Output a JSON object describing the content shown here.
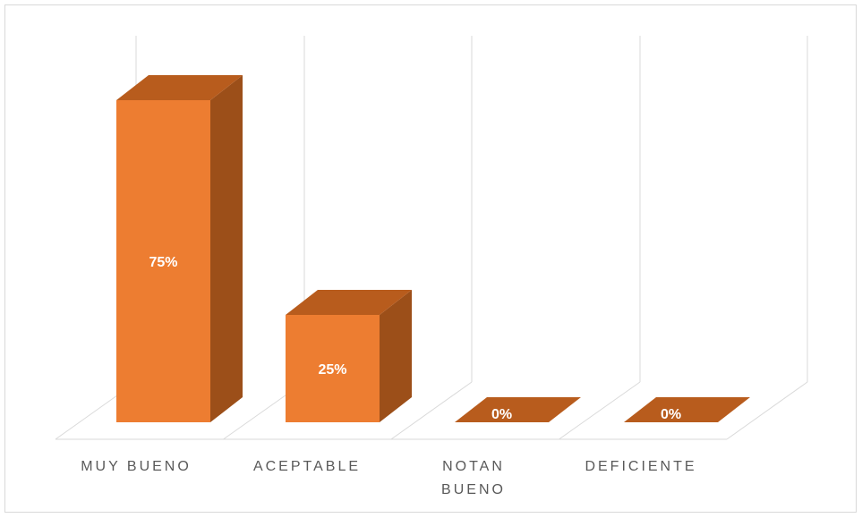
{
  "chart_data": {
    "type": "bar",
    "style": "3d-column",
    "categories": [
      [
        "MUY BUENO"
      ],
      [
        "ACEPTABLE"
      ],
      [
        "NOTAN",
        "BUENO"
      ],
      [
        "DEFICIENTE"
      ]
    ],
    "values": [
      75,
      25,
      0,
      0
    ],
    "data_labels": [
      "75%",
      "25%",
      "0%",
      "0%"
    ],
    "unit": "%",
    "ylim": [
      0,
      80
    ],
    "grid": true,
    "legend": "none",
    "colors": {
      "front": "#ed7d31",
      "side": "#9c4f19",
      "top": "#b85c1d",
      "grid": "#d9d9d9",
      "label": "#595959"
    }
  }
}
